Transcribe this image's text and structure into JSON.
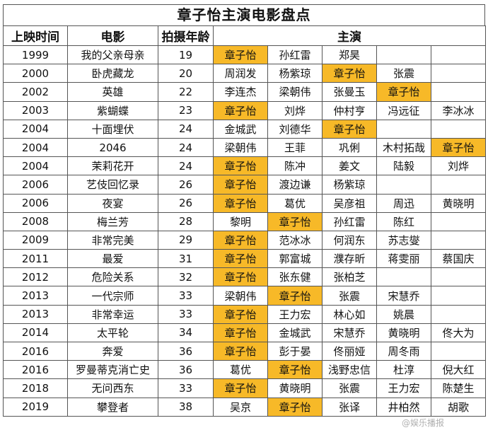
{
  "title": "章子怡主演电影盘点",
  "headers": {
    "year": "上映时间",
    "film": "电影",
    "age": "拍摄年龄",
    "cast": "主演"
  },
  "highlight_color": "#f7b928",
  "highlight_actor": "章子怡",
  "rows": [
    {
      "year": "1999",
      "film": "我的父亲母亲",
      "age": "19",
      "cast": [
        "章子怡",
        "孙红雷",
        "郑昊",
        "",
        ""
      ]
    },
    {
      "year": "2000",
      "film": "卧虎藏龙",
      "age": "20",
      "cast": [
        "周润发",
        "杨紫琼",
        "章子怡",
        "张震",
        ""
      ]
    },
    {
      "year": "2002",
      "film": "英雄",
      "age": "22",
      "cast": [
        "李连杰",
        "梁朝伟",
        "张曼玉",
        "章子怡",
        ""
      ]
    },
    {
      "year": "2003",
      "film": "紫蝴蝶",
      "age": "23",
      "cast": [
        "章子怡",
        "刘烨",
        "仲村亨",
        "冯远征",
        "李冰冰"
      ]
    },
    {
      "year": "2004",
      "film": "十面埋伏",
      "age": "24",
      "cast": [
        "金城武",
        "刘德华",
        "章子怡",
        "",
        ""
      ]
    },
    {
      "year": "2004",
      "film": "2046",
      "age": "24",
      "cast": [
        "梁朝伟",
        "王菲",
        "巩俐",
        "木村拓哉",
        "章子怡"
      ]
    },
    {
      "year": "2004",
      "film": "茉莉花开",
      "age": "24",
      "cast": [
        "章子怡",
        "陈冲",
        "姜文",
        "陆毅",
        "刘烨"
      ]
    },
    {
      "year": "2006",
      "film": "艺伎回忆录",
      "age": "26",
      "cast": [
        "章子怡",
        "渡边谦",
        "杨紫琼",
        "",
        ""
      ]
    },
    {
      "year": "2006",
      "film": "夜宴",
      "age": "26",
      "cast": [
        "章子怡",
        "葛优",
        "吴彦祖",
        "周迅",
        "黄晓明"
      ]
    },
    {
      "year": "2008",
      "film": "梅兰芳",
      "age": "28",
      "cast": [
        "黎明",
        "章子怡",
        "孙红雷",
        "陈红",
        ""
      ]
    },
    {
      "year": "2009",
      "film": "非常完美",
      "age": "29",
      "cast": [
        "章子怡",
        "范冰冰",
        "何润东",
        "苏志燮",
        ""
      ]
    },
    {
      "year": "2011",
      "film": "最爱",
      "age": "31",
      "cast": [
        "章子怡",
        "郭富城",
        "濮存昕",
        "蒋雯丽",
        "蔡国庆"
      ]
    },
    {
      "year": "2012",
      "film": "危险关系",
      "age": "32",
      "cast": [
        "章子怡",
        "张东健",
        "张柏芝",
        "",
        ""
      ]
    },
    {
      "year": "2013",
      "film": "一代宗师",
      "age": "33",
      "cast": [
        "梁朝伟",
        "章子怡",
        "张震",
        "宋慧乔",
        ""
      ]
    },
    {
      "year": "2013",
      "film": "非常幸运",
      "age": "33",
      "cast": [
        "章子怡",
        "王力宏",
        "林心如",
        "姚晨",
        ""
      ]
    },
    {
      "year": "2014",
      "film": "太平轮",
      "age": "34",
      "cast": [
        "章子怡",
        "金城武",
        "宋慧乔",
        "黄晓明",
        "佟大为"
      ]
    },
    {
      "year": "2016",
      "film": "奔爱",
      "age": "36",
      "cast": [
        "章子怡",
        "彭于晏",
        "佟丽娅",
        "周冬雨",
        ""
      ]
    },
    {
      "year": "2016",
      "film": "罗曼蒂克消亡史",
      "age": "36",
      "cast": [
        "葛优",
        "章子怡",
        "浅野忠信",
        "杜淳",
        "倪大红"
      ]
    },
    {
      "year": "2018",
      "film": "无问西东",
      "age": "33",
      "cast": [
        "章子怡",
        "黄晓明",
        "张震",
        "王力宏",
        "陈楚生"
      ]
    },
    {
      "year": "2019",
      "film": "攀登者",
      "age": "38",
      "cast": [
        "吴京",
        "章子怡",
        "张译",
        "井柏然",
        "胡歌"
      ]
    }
  ],
  "watermark": "@娱乐播报"
}
